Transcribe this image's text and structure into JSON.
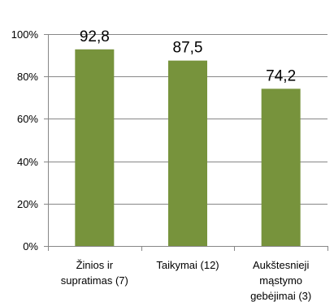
{
  "chart_data": {
    "type": "bar",
    "categories": [
      [
        "Žinios ir",
        "supratimas (7)"
      ],
      [
        "Taikymai (12)"
      ],
      [
        "Aukštesnieji",
        "mąstymo",
        "gebėjimai (3)"
      ]
    ],
    "values": [
      92.8,
      87.5,
      74.2
    ],
    "data_labels": [
      "92,8",
      "87,5",
      "74,2"
    ],
    "ylim": [
      0,
      100
    ],
    "yticks": [
      0,
      20,
      40,
      60,
      80,
      100
    ],
    "ytick_labels": [
      "0%",
      "20%",
      "40%",
      "60%",
      "80%",
      "100%"
    ],
    "grid": true,
    "legend": "none",
    "bar_color": "#77933c"
  }
}
